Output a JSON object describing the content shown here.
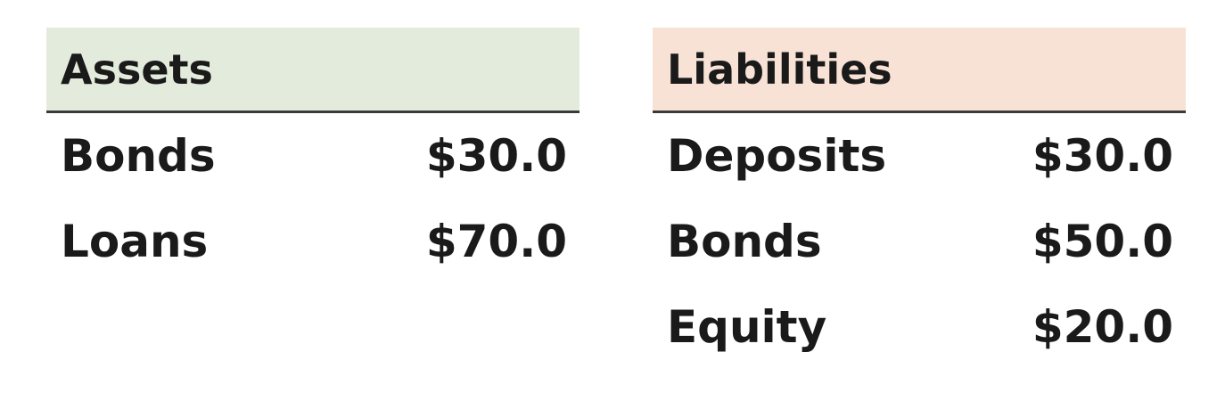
{
  "assets": {
    "title": "Assets",
    "header_color": "#e3ecdc",
    "rows": [
      {
        "label": "Bonds",
        "value": "$30.0"
      },
      {
        "label": "Loans",
        "value": "$70.0"
      }
    ]
  },
  "liabilities": {
    "title": "Liabilities",
    "header_color": "#f8e2d6",
    "rows": [
      {
        "label": "Deposits",
        "value": "$30.0"
      },
      {
        "label": "Bonds",
        "value": "$50.0"
      },
      {
        "label": "Equity",
        "value": "$20.0"
      }
    ]
  }
}
